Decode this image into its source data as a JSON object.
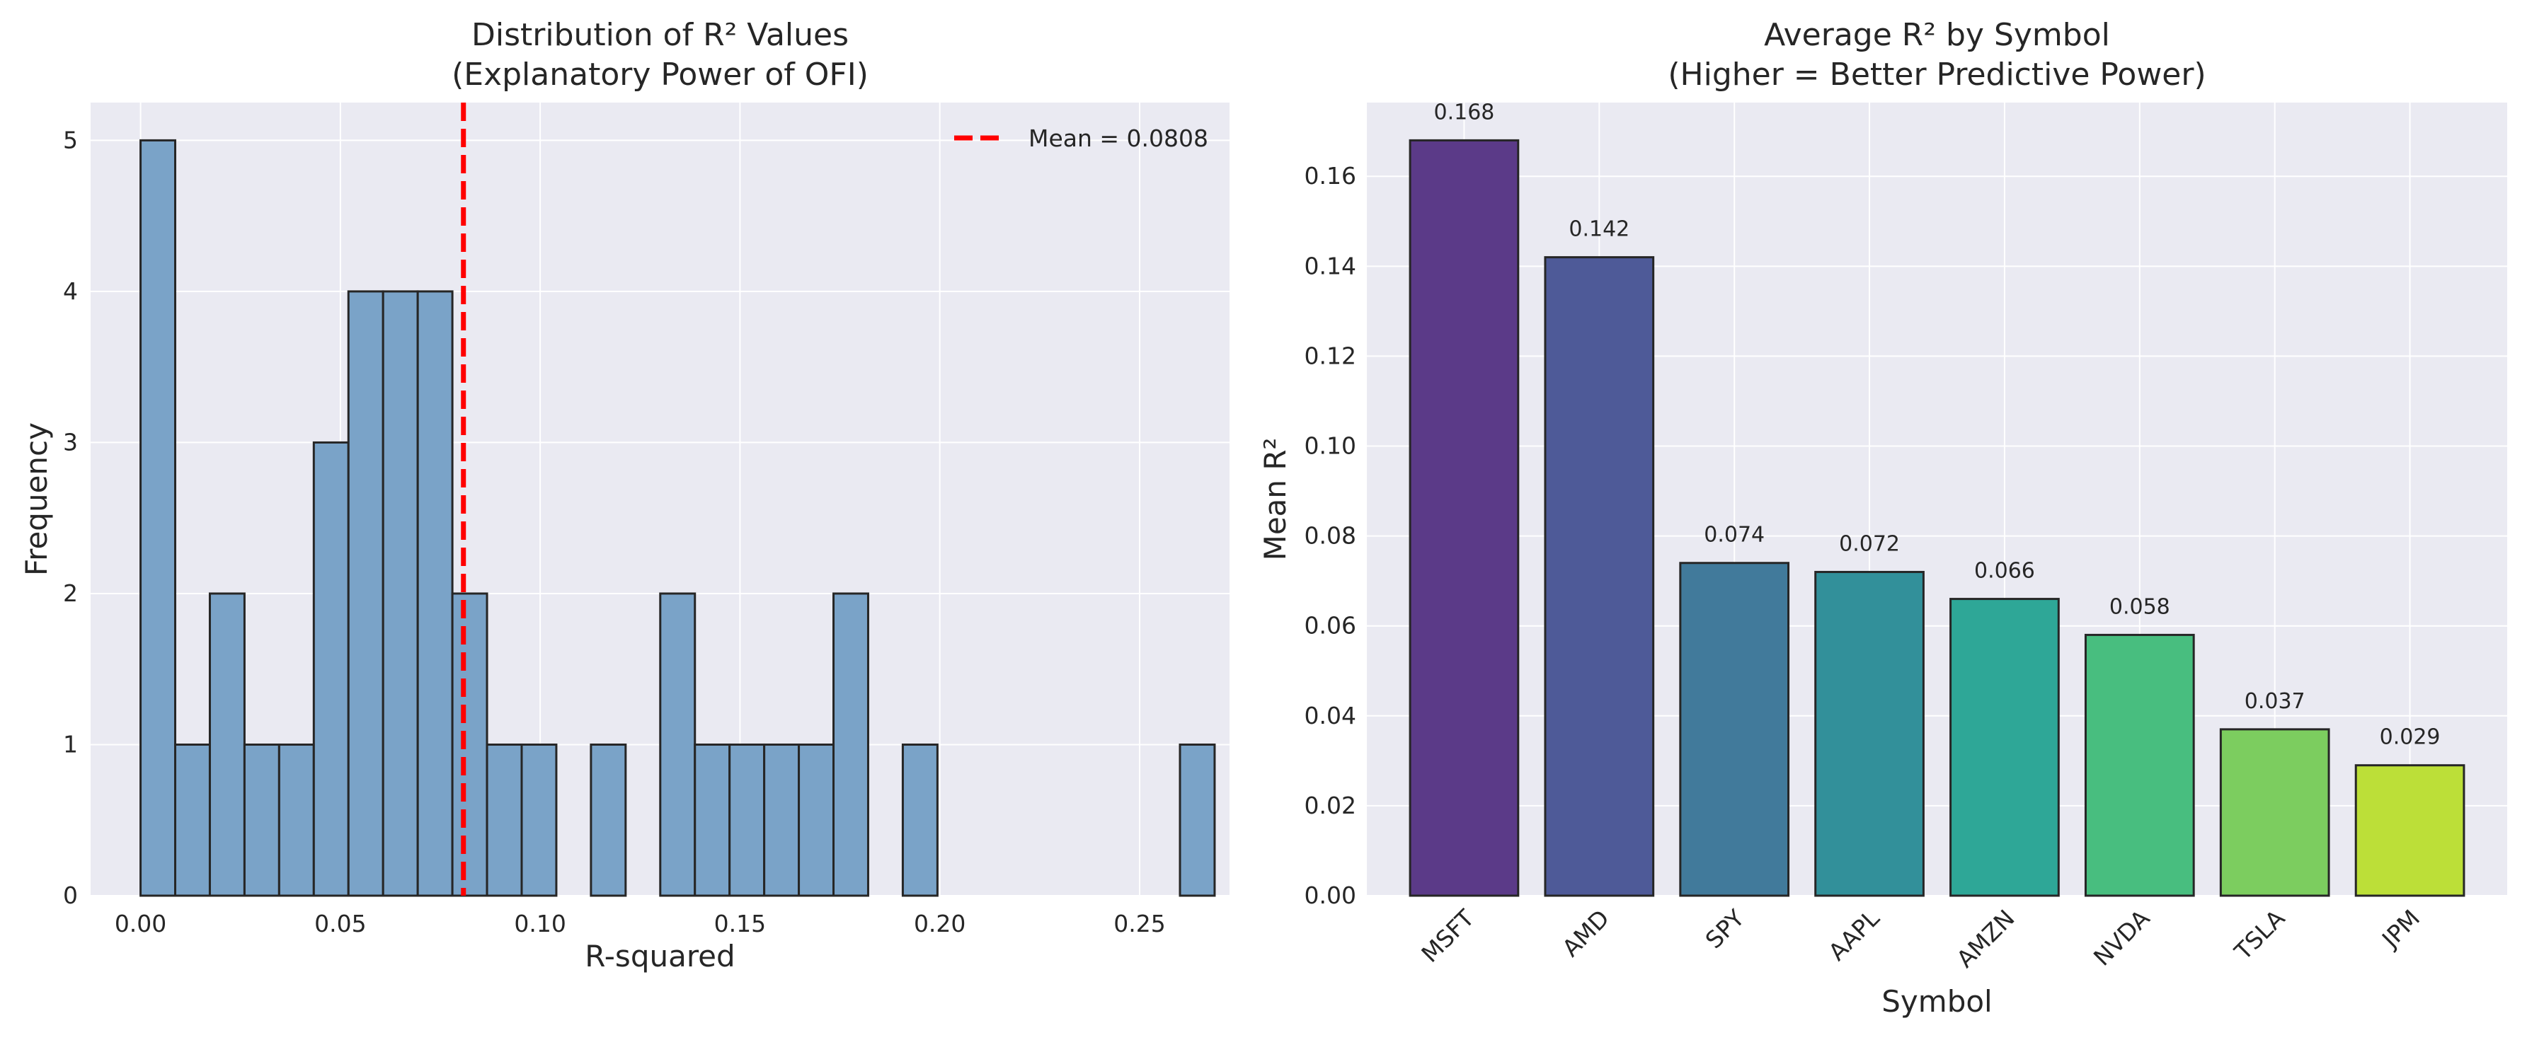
{
  "chart_data": [
    {
      "type": "bar",
      "subtype": "histogram",
      "title": "Distribution of R² Values",
      "subtitle": "(Explanatory Power of OFI)",
      "xlabel": "R-squared",
      "ylabel": "Frequency",
      "xlim": [
        -0.0125,
        0.2725
      ],
      "ylim": [
        0,
        5.25
      ],
      "x_ticks": [
        0.0,
        0.05,
        0.1,
        0.15,
        0.2,
        0.25
      ],
      "x_tick_labels": [
        "0.00",
        "0.05",
        "0.10",
        "0.15",
        "0.20",
        "0.25"
      ],
      "y_ticks": [
        0,
        1,
        2,
        3,
        4,
        5
      ],
      "y_tick_labels": [
        "0",
        "1",
        "2",
        "3",
        "4",
        "5"
      ],
      "bin_start": 0.0,
      "bin_width": 0.00867,
      "counts": [
        5,
        1,
        2,
        1,
        1,
        3,
        4,
        4,
        4,
        2,
        1,
        1,
        0,
        1,
        0,
        2,
        1,
        1,
        1,
        1,
        2,
        0,
        1,
        0,
        0,
        0,
        0,
        0,
        0,
        0,
        1
      ],
      "bar_color": "#7aa3c8",
      "edge_color": "#262626",
      "mean_line": {
        "value": 0.0808,
        "label": "Mean = 0.0808",
        "color": "#ff0000"
      },
      "grid": true,
      "legend_position": "top-right",
      "background": "#eaeaf2"
    },
    {
      "type": "bar",
      "title": "Average R² by Symbol",
      "subtitle": "(Higher = Better Predictive Power)",
      "xlabel": "Symbol",
      "ylabel": "Mean R²",
      "ylim": [
        0,
        0.1764
      ],
      "y_ticks": [
        0,
        0.02,
        0.04,
        0.06,
        0.08,
        0.1,
        0.12,
        0.14,
        0.16
      ],
      "y_tick_labels": [
        "0.00",
        "0.02",
        "0.04",
        "0.06",
        "0.08",
        "0.10",
        "0.12",
        "0.14",
        "0.16"
      ],
      "categories": [
        "MSFT",
        "AMD",
        "SPY",
        "AAPL",
        "AMZN",
        "NVDA",
        "TSLA",
        "JPM"
      ],
      "values": [
        0.168,
        0.142,
        0.074,
        0.072,
        0.066,
        0.058,
        0.037,
        0.029
      ],
      "value_labels": [
        "0.168",
        "0.142",
        "0.074",
        "0.072",
        "0.066",
        "0.058",
        "0.037",
        "0.029"
      ],
      "colors": [
        "#5b3a88",
        "#4e5a98",
        "#417a9b",
        "#32909a",
        "#2ea797",
        "#48be7f",
        "#7ccd5f",
        "#bcdf38"
      ],
      "edge_color": "#262626",
      "x_tick_rotation": 45,
      "grid": true,
      "background": "#eaeaf2"
    }
  ]
}
